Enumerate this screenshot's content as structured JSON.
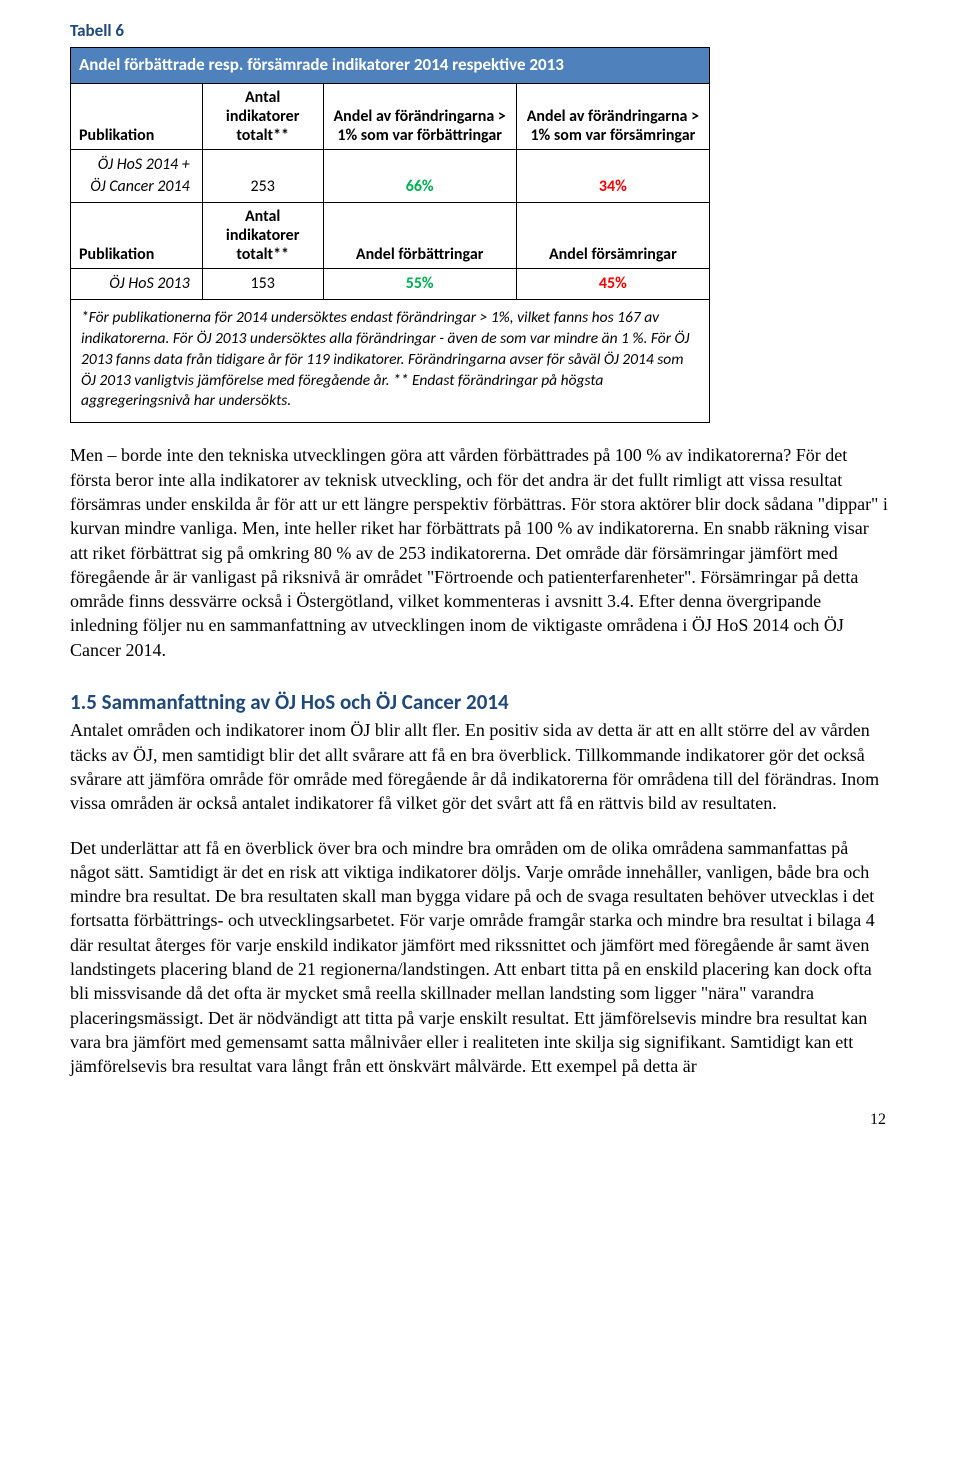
{
  "table": {
    "label": "Tabell 6",
    "title": "Andel förbättrade resp. försämrade indikatorer 2014 respektive 2013",
    "header1": {
      "pub": "Publikation",
      "col1": "Antal indikatorer totalt**",
      "col2": "Andel av förändringarna > 1% som var förbättringar",
      "col3": "Andel av förändringarna > 1%  som var försämringar"
    },
    "row1": {
      "pub": "ÖJ HoS 2014 + ÖJ Cancer 2014",
      "c1": "253",
      "c2": "66%",
      "c3": "34%"
    },
    "header2": {
      "pub": "Publikation",
      "col1": "Antal indikatorer totalt**",
      "col2": "Andel förbättringar",
      "col3": "Andel försämringar"
    },
    "row2": {
      "pub": "ÖJ HoS 2013",
      "c1": "153",
      "c2": "55%",
      "c3": "45%"
    },
    "footnote": "*För publikationerna för 2014 undersöktes endast förändringar > 1%, vilket fanns hos 167 av indikatorerna. För ÖJ 2013 undersöktes alla förändringar - även de som var mindre än 1 %. För ÖJ 2013 fanns data från tidigare år för 119 indikatorer. Förändringarna avser för såväl ÖJ 2014 som ÖJ 2013 vanligtvis jämförelse med föregående år. ** Endast förändringar på högsta aggregeringsnivå har undersökts."
  },
  "para1": "Men – borde inte den tekniska utvecklingen göra att vården förbättrades på 100 % av indikatorerna? För det första beror inte alla indikatorer av teknisk utveckling, och för det andra är det fullt rimligt att vissa resultat försämras under enskilda år för att ur ett längre perspektiv förbättras. För stora aktörer blir dock sådana \"dippar\" i kurvan mindre vanliga. Men, inte heller riket har förbättrats på 100 % av indikatorerna. En snabb räkning visar att riket förbättrat sig på omkring 80 % av de 253 indikatorerna. Det område där försämringar jämfört med föregående år är vanligast på riksnivå är området \"Förtroende och patienterfarenheter\". Försämringar på detta område finns dessvärre också i Östergötland, vilket kommenteras i avsnitt 3.4. Efter denna övergripande inledning följer nu en sammanfattning av utvecklingen inom de viktigaste områdena i ÖJ HoS 2014 och ÖJ Cancer 2014.",
  "section_heading": "1.5 Sammanfattning av ÖJ HoS och ÖJ Cancer 2014",
  "para2": "Antalet områden och indikatorer inom ÖJ blir allt fler. En positiv sida av detta är att en allt större del av vården täcks av ÖJ, men samtidigt blir det allt svårare att få en bra överblick. Tillkommande indikatorer gör det också svårare att jämföra område för område med föregående år då indikatorerna för områdena till del förändras. Inom vissa områden är också antalet indikatorer få vilket gör det svårt att få en rättvis bild av resultaten.",
  "para3": "Det underlättar att få en överblick över bra och mindre bra områden om de olika områdena sammanfattas på något sätt. Samtidigt är det en risk att viktiga indikatorer döljs. Varje område innehåller, vanligen, både bra och mindre bra resultat. De bra resultaten skall man bygga vidare på och de svaga resultaten behöver utvecklas i det fortsatta förbättrings- och utvecklingsarbetet. För varje område framgår starka och mindre bra resultat i bilaga 4 där resultat återges för varje enskild indikator jämfört med rikssnittet och jämfört med föregående år samt även landstingets placering bland de 21 regionerna/landstingen. Att enbart titta på en enskild placering kan dock ofta bli missvisande då det ofta är mycket små reella skillnader mellan landsting som ligger \"nära\" varandra placeringsmässigt.  Det är nödvändigt att titta på varje enskilt resultat. Ett jämförelsevis mindre bra resultat kan vara bra jämfört med gemensamt satta målnivåer eller i realiteten inte skilja sig signifikant. Samtidigt kan ett jämförelsevis bra resultat vara långt från ett önskvärt målvärde. Ett exempel på detta är",
  "page_number": "12"
}
